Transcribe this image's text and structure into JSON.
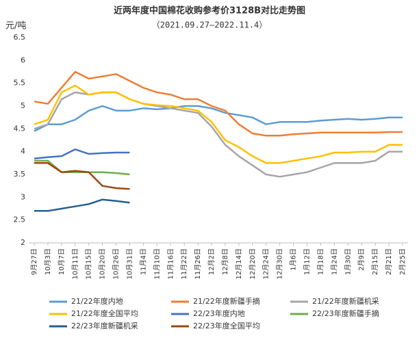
{
  "chart_data": {
    "type": "line",
    "title": "近两年度中国棉花收购参考价3128B对比走势图",
    "subtitle": "（2021.09.27—2022.11.4）",
    "y_label": "元/吨",
    "categories": [
      "9月27日",
      "10月3日",
      "10月7日",
      "10月11日",
      "10月15日",
      "10月20日",
      "10月26日",
      "10月31日",
      "11月4日",
      "11月10日",
      "11月16日",
      "11月22日",
      "11月26日",
      "12月2日",
      "12月8日",
      "12月14日",
      "12月20日",
      "12月24日",
      "12月30日",
      "1月6日",
      "1月12日",
      "1月18日",
      "1月24日",
      "1月30日",
      "2月9日",
      "2月15日",
      "2月21日",
      "2月25日"
    ],
    "ylim": [
      2,
      6.5
    ],
    "yticks": [
      2,
      2.5,
      3,
      3.5,
      4,
      4.5,
      5,
      5.5,
      6,
      6.5
    ],
    "grid": false,
    "legend": "bottom",
    "series": [
      {
        "name": "21/22年度内地",
        "color": "#5b9bd5",
        "values": [
          4.45,
          4.6,
          4.6,
          4.7,
          4.9,
          5.0,
          4.9,
          4.9,
          4.95,
          4.93,
          4.95,
          5.0,
          5.0,
          4.95,
          4.85,
          4.8,
          4.75,
          4.6,
          4.65,
          4.65,
          4.65,
          4.68,
          4.7,
          4.72,
          4.7,
          4.72,
          4.75,
          4.75
        ]
      },
      {
        "name": "21/22年度新疆手摘",
        "color": "#ed7d31",
        "values": [
          5.1,
          5.05,
          5.4,
          5.75,
          5.6,
          5.65,
          5.7,
          5.55,
          5.4,
          5.3,
          5.25,
          5.15,
          5.15,
          5.0,
          4.9,
          4.6,
          4.4,
          4.35,
          4.35,
          4.38,
          4.4,
          4.42,
          4.42,
          4.42,
          4.42,
          4.42,
          4.43,
          4.43
        ]
      },
      {
        "name": "21/22年度新疆机采",
        "color": "#a5a5a5",
        "values": [
          4.5,
          4.6,
          5.15,
          5.3,
          5.25,
          5.3,
          5.3,
          5.15,
          5.05,
          5.0,
          4.95,
          4.9,
          4.85,
          4.55,
          4.15,
          3.9,
          3.7,
          3.5,
          3.45,
          3.5,
          3.55,
          3.65,
          3.75,
          3.75,
          3.75,
          3.8,
          4.0,
          4.0
        ]
      },
      {
        "name": "21/22年度全国平均",
        "color": "#ffc000",
        "values": [
          4.6,
          4.7,
          5.3,
          5.45,
          5.25,
          5.3,
          5.3,
          5.15,
          5.05,
          5.02,
          5.0,
          4.95,
          4.9,
          4.65,
          4.25,
          4.1,
          3.9,
          3.75,
          3.75,
          3.8,
          3.85,
          3.9,
          3.98,
          3.98,
          4.0,
          4.0,
          4.15,
          4.15
        ]
      },
      {
        "name": "22/23年度内地",
        "color": "#4472c4",
        "values": [
          3.85,
          3.88,
          3.9,
          4.05,
          3.95,
          3.97,
          3.98,
          3.98,
          null,
          null,
          null,
          null,
          null,
          null,
          null,
          null,
          null,
          null,
          null,
          null,
          null,
          null,
          null,
          null,
          null,
          null,
          null,
          null
        ]
      },
      {
        "name": "22/23年度新疆手摘",
        "color": "#70ad47",
        "values": [
          3.8,
          3.8,
          3.55,
          3.55,
          3.55,
          3.55,
          3.53,
          3.5,
          null,
          null,
          null,
          null,
          null,
          null,
          null,
          null,
          null,
          null,
          null,
          null,
          null,
          null,
          null,
          null,
          null,
          null,
          null,
          null
        ]
      },
      {
        "name": "22/23年度新疆机采",
        "color": "#255e91",
        "values": [
          2.7,
          2.7,
          2.75,
          2.8,
          2.85,
          2.95,
          2.92,
          2.88,
          null,
          null,
          null,
          null,
          null,
          null,
          null,
          null,
          null,
          null,
          null,
          null,
          null,
          null,
          null,
          null,
          null,
          null,
          null,
          null
        ]
      },
      {
        "name": "22/23年度全国平均",
        "color": "#9e480e",
        "values": [
          3.75,
          3.75,
          3.55,
          3.58,
          3.55,
          3.25,
          3.2,
          3.18,
          null,
          null,
          null,
          null,
          null,
          null,
          null,
          null,
          null,
          null,
          null,
          null,
          null,
          null,
          null,
          null,
          null,
          null,
          null,
          null
        ]
      }
    ]
  }
}
